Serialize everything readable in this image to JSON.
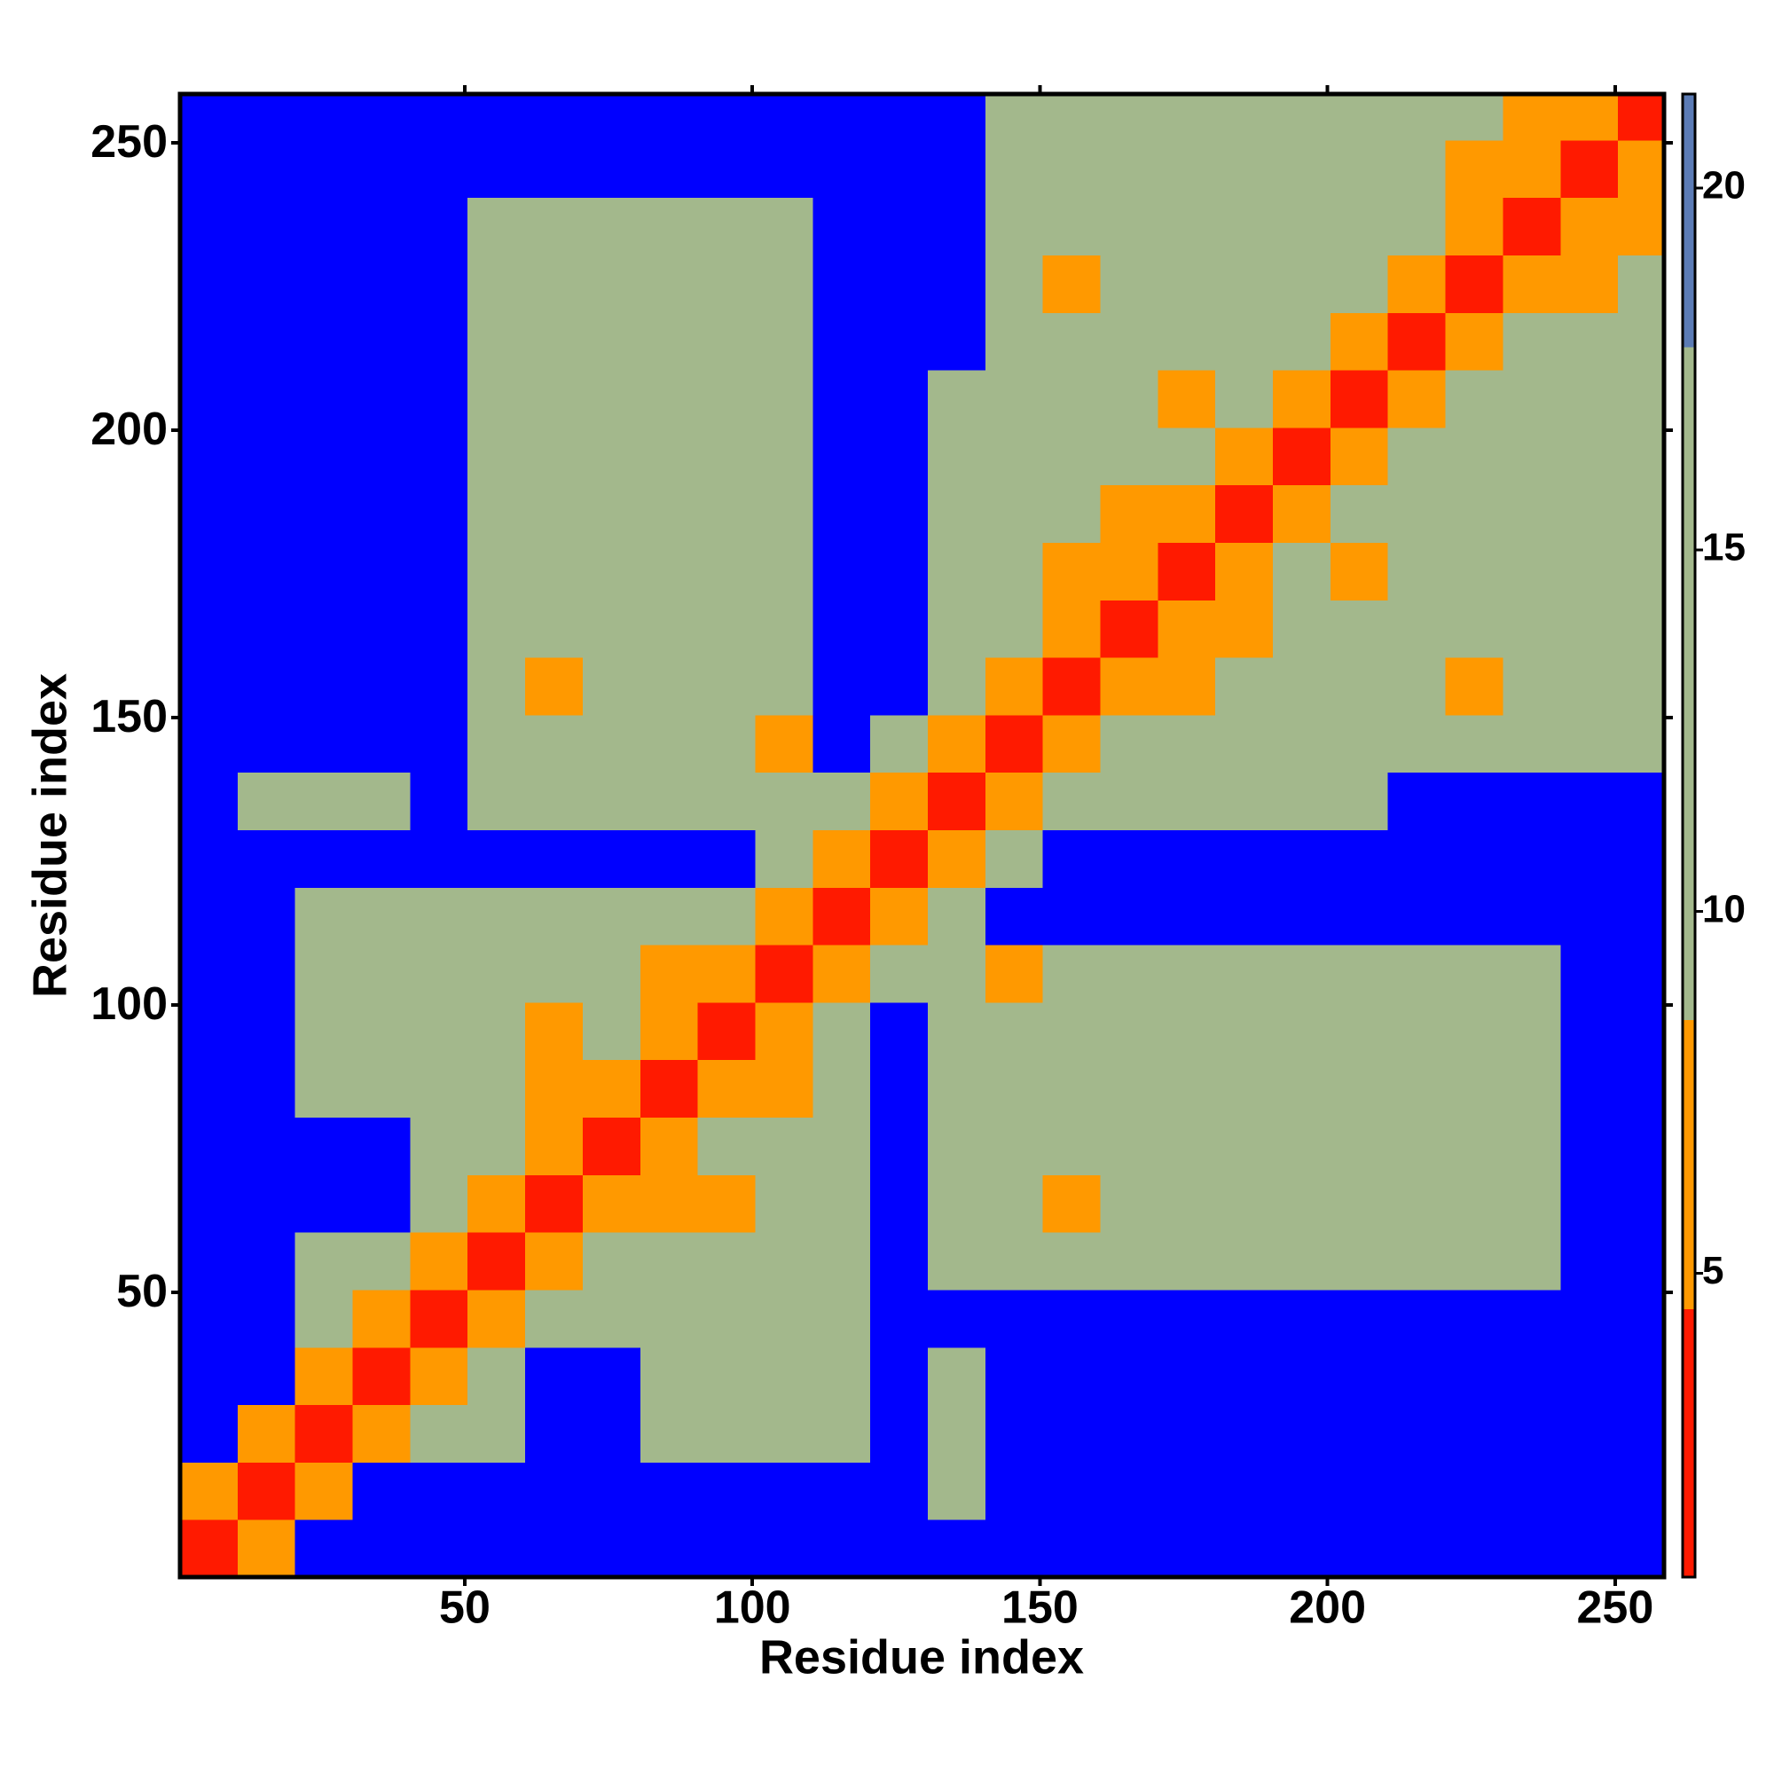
{
  "chart_data": {
    "type": "heatmap",
    "x_label": "Residue index",
    "y_label": "Residue index",
    "x_bins": [
      0.5,
      10.5,
      20.5,
      30.5,
      40.5,
      50.5,
      60.5,
      70.5,
      80.5,
      90.5,
      100.5,
      110.5,
      120.5,
      130.5,
      140.5,
      150.5,
      160.5,
      170.5,
      180.5,
      190.5,
      200.5,
      210.5,
      220.5,
      230.5,
      240.5,
      250.5,
      258.5
    ],
    "y_bins": [
      0.5,
      10.5,
      20.5,
      30.5,
      40.5,
      50.5,
      60.5,
      70.5,
      80.5,
      90.5,
      100.5,
      110.5,
      120.5,
      130.5,
      140.5,
      150.5,
      160.5,
      170.5,
      180.5,
      190.5,
      200.5,
      210.5,
      220.5,
      230.5,
      240.5,
      250.5,
      258.5
    ],
    "z": [
      [
        3,
        8,
        25,
        25,
        25,
        25,
        25,
        25,
        25,
        25,
        25,
        25,
        25,
        25,
        25,
        25,
        25,
        25,
        25,
        25,
        25,
        25,
        25,
        25,
        25,
        25
      ],
      [
        8,
        3,
        8,
        25,
        25,
        25,
        25,
        25,
        25,
        25,
        25,
        25,
        25,
        13,
        25,
        25,
        25,
        25,
        25,
        25,
        25,
        25,
        25,
        25,
        25,
        25
      ],
      [
        25,
        8,
        3,
        8,
        13,
        13,
        25,
        25,
        13,
        13,
        13,
        13,
        25,
        13,
        25,
        25,
        25,
        25,
        25,
        25,
        25,
        25,
        25,
        25,
        25,
        25
      ],
      [
        25,
        25,
        8,
        3,
        8,
        13,
        25,
        25,
        13,
        13,
        13,
        13,
        25,
        13,
        25,
        25,
        25,
        25,
        25,
        25,
        25,
        25,
        25,
        25,
        25,
        25
      ],
      [
        25,
        25,
        13,
        8,
        3,
        8,
        13,
        13,
        13,
        13,
        13,
        13,
        25,
        25,
        25,
        25,
        25,
        25,
        25,
        25,
        25,
        25,
        25,
        25,
        25,
        25
      ],
      [
        25,
        25,
        13,
        13,
        8,
        3,
        8,
        13,
        13,
        13,
        13,
        13,
        25,
        13,
        13,
        13,
        13,
        13,
        13,
        13,
        13,
        13,
        13,
        13,
        25,
        25
      ],
      [
        25,
        25,
        25,
        25,
        13,
        8,
        3,
        8,
        7,
        7,
        13,
        13,
        25,
        13,
        13,
        7,
        13,
        13,
        13,
        13,
        13,
        13,
        13,
        13,
        25,
        25
      ],
      [
        25,
        25,
        25,
        25,
        13,
        13,
        8,
        3,
        7,
        13,
        13,
        13,
        25,
        13,
        13,
        13,
        13,
        13,
        13,
        13,
        13,
        13,
        13,
        13,
        25,
        25
      ],
      [
        25,
        25,
        13,
        13,
        13,
        13,
        7,
        7,
        3,
        8,
        7,
        13,
        25,
        13,
        13,
        13,
        13,
        13,
        13,
        13,
        13,
        13,
        13,
        13,
        25,
        25
      ],
      [
        25,
        25,
        13,
        13,
        13,
        13,
        7,
        13,
        8,
        3,
        8,
        13,
        25,
        13,
        13,
        13,
        13,
        13,
        13,
        13,
        13,
        13,
        13,
        13,
        25,
        25
      ],
      [
        25,
        25,
        13,
        13,
        13,
        13,
        13,
        13,
        7,
        8,
        3,
        8,
        13,
        13,
        7,
        13,
        13,
        13,
        13,
        13,
        13,
        13,
        13,
        13,
        25,
        25
      ],
      [
        25,
        25,
        13,
        13,
        13,
        13,
        13,
        13,
        13,
        13,
        8,
        3,
        8,
        13,
        25,
        25,
        25,
        25,
        25,
        25,
        25,
        25,
        25,
        25,
        25,
        25
      ],
      [
        25,
        25,
        25,
        25,
        25,
        25,
        25,
        25,
        25,
        25,
        13,
        8,
        3,
        8,
        13,
        25,
        25,
        25,
        25,
        25,
        25,
        25,
        25,
        25,
        25,
        25
      ],
      [
        25,
        13,
        13,
        13,
        25,
        13,
        13,
        13,
        13,
        13,
        13,
        13,
        8,
        3,
        8,
        13,
        13,
        13,
        13,
        13,
        13,
        25,
        25,
        25,
        25,
        25
      ],
      [
        25,
        25,
        25,
        25,
        25,
        13,
        13,
        13,
        13,
        13,
        7,
        25,
        13,
        8,
        3,
        8,
        13,
        13,
        13,
        13,
        13,
        13,
        13,
        13,
        13,
        13
      ],
      [
        25,
        25,
        25,
        25,
        25,
        13,
        7,
        13,
        13,
        13,
        13,
        25,
        25,
        13,
        8,
        3,
        8,
        7,
        13,
        13,
        13,
        13,
        7,
        13,
        13,
        13
      ],
      [
        25,
        25,
        25,
        25,
        25,
        13,
        13,
        13,
        13,
        13,
        13,
        25,
        25,
        13,
        13,
        8,
        3,
        8,
        7,
        13,
        13,
        13,
        13,
        13,
        13,
        13
      ],
      [
        25,
        25,
        25,
        25,
        25,
        13,
        13,
        13,
        13,
        13,
        13,
        25,
        25,
        13,
        13,
        7,
        8,
        3,
        8,
        13,
        7,
        13,
        13,
        13,
        13,
        13
      ],
      [
        25,
        25,
        25,
        25,
        25,
        13,
        13,
        13,
        13,
        13,
        13,
        25,
        25,
        13,
        13,
        13,
        7,
        8,
        3,
        8,
        13,
        13,
        13,
        13,
        13,
        13
      ],
      [
        25,
        25,
        25,
        25,
        25,
        13,
        13,
        13,
        13,
        13,
        13,
        25,
        25,
        13,
        13,
        13,
        13,
        13,
        8,
        3,
        8,
        13,
        13,
        13,
        13,
        13
      ],
      [
        25,
        25,
        25,
        25,
        25,
        13,
        13,
        13,
        13,
        13,
        13,
        25,
        25,
        13,
        13,
        13,
        13,
        7,
        13,
        8,
        3,
        8,
        13,
        13,
        13,
        13
      ],
      [
        25,
        25,
        25,
        25,
        25,
        13,
        13,
        13,
        13,
        13,
        13,
        25,
        25,
        25,
        13,
        13,
        13,
        13,
        13,
        13,
        8,
        3,
        8,
        13,
        13,
        13
      ],
      [
        25,
        25,
        25,
        25,
        25,
        13,
        13,
        13,
        13,
        13,
        13,
        25,
        25,
        25,
        13,
        7,
        13,
        13,
        13,
        13,
        13,
        8,
        3,
        8,
        7,
        13
      ],
      [
        25,
        25,
        25,
        25,
        25,
        13,
        13,
        13,
        13,
        13,
        13,
        25,
        25,
        25,
        13,
        13,
        13,
        13,
        13,
        13,
        13,
        13,
        8,
        3,
        8,
        7
      ],
      [
        25,
        25,
        25,
        25,
        25,
        25,
        25,
        25,
        25,
        25,
        25,
        25,
        25,
        25,
        13,
        13,
        13,
        13,
        13,
        13,
        13,
        13,
        7,
        8,
        3,
        8
      ],
      [
        25,
        25,
        25,
        25,
        25,
        25,
        25,
        25,
        25,
        25,
        25,
        25,
        25,
        25,
        13,
        13,
        13,
        13,
        13,
        13,
        13,
        13,
        13,
        7,
        8,
        3
      ]
    ],
    "xlim": [
      0.5,
      258.5
    ],
    "ylim": [
      0.5,
      258.5
    ],
    "xticks": [
      50,
      100,
      150,
      200,
      250
    ],
    "yticks": [
      50,
      100,
      150,
      200,
      250
    ],
    "colorbar": {
      "levels": [
        0.8,
        4.5,
        8.5,
        17.8,
        21.3
      ],
      "colors": [
        "#ff1a00",
        "#ff9900",
        "#a3b88c",
        "#5b7bb5"
      ],
      "over_color": "#0000ff",
      "ticks": [
        5,
        10,
        15,
        20
      ]
    }
  }
}
